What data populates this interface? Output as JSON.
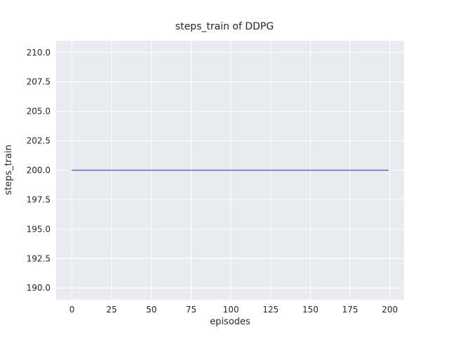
{
  "figure": {
    "background": "#ffffff"
  },
  "chart_data": {
    "type": "line",
    "title": "steps_train of DDPG",
    "xlabel": "episodes",
    "ylabel": "steps_train",
    "x": [
      0,
      199
    ],
    "series": [
      {
        "name": "steps_train",
        "values": [
          200,
          200
        ],
        "color": "#4c72b0"
      }
    ],
    "xlim": [
      -9.95,
      208.95
    ],
    "ylim": [
      189,
      211
    ],
    "xticks": [
      0,
      25,
      50,
      75,
      100,
      125,
      150,
      175,
      200
    ],
    "xtick_labels": [
      "0",
      "25",
      "50",
      "75",
      "100",
      "125",
      "150",
      "175",
      "200"
    ],
    "yticks": [
      190.0,
      192.5,
      195.0,
      197.5,
      200.0,
      202.5,
      205.0,
      207.5,
      210.0
    ],
    "ytick_labels": [
      "190.0",
      "192.5",
      "195.0",
      "197.5",
      "200.0",
      "202.5",
      "205.0",
      "207.5",
      "210.0"
    ],
    "grid": true,
    "legend": "none",
    "plot_background": "#eaeaf2",
    "grid_color": "#ffffff",
    "text_color": "#262626"
  }
}
